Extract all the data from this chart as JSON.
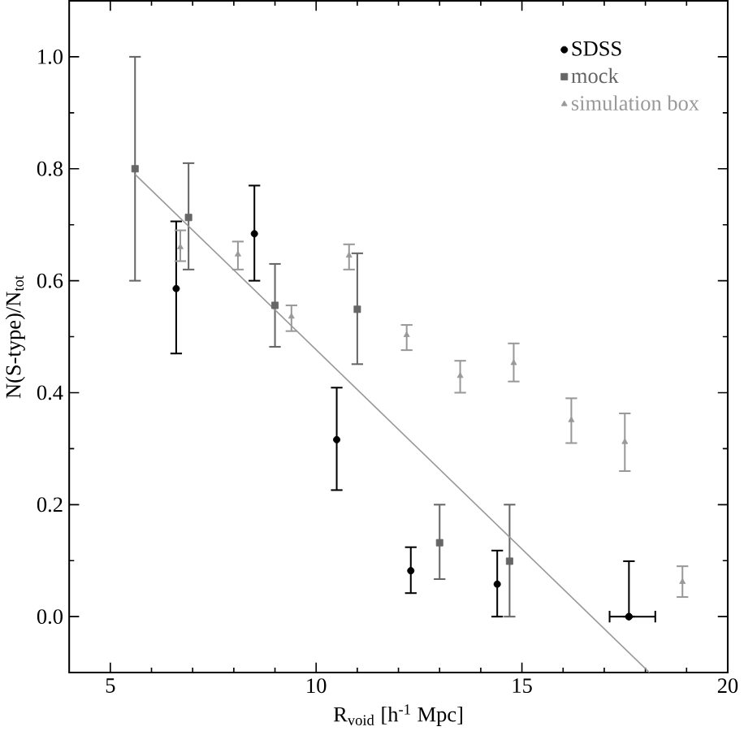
{
  "chart_data": {
    "type": "scatter",
    "xlabel": "R$_{void}$ [h$^{-1}$ Mpc]",
    "ylabel": "N(S-type)/N$_{tot}$",
    "xlim": [
      4,
      20
    ],
    "ylim": [
      -0.1,
      1.1
    ],
    "xticks": [
      5,
      10,
      15,
      20
    ],
    "yticks": [
      {
        "value": 0,
        "label": "0.0"
      },
      {
        "value": 0.2,
        "label": "0.2"
      },
      {
        "value": 0.4,
        "label": "0.4"
      },
      {
        "value": 0.6,
        "label": "0.6"
      },
      {
        "value": 0.8,
        "label": "0.8"
      },
      {
        "value": 1.0,
        "label": "1.0"
      }
    ],
    "grid": false,
    "legend": "top right",
    "series": [
      {
        "name": "SDSS",
        "color": "#000000",
        "marker": "circle",
        "x": [
          6.6,
          8.5,
          10.5,
          12.3,
          14.4,
          17.6
        ],
        "values": [
          0.586,
          0.684,
          0.316,
          0.082,
          0.058,
          0.0
        ],
        "errors": [
          [
            0.47,
            0.706
          ],
          [
            0.6,
            0.77
          ],
          [
            0.226,
            0.409
          ],
          [
            0.042,
            0.124
          ],
          [
            0.0,
            0.118
          ],
          [
            0.0,
            0.099
          ]
        ],
        "xerrors": [
          null,
          null,
          null,
          null,
          null,
          [
            17.13,
            18.24
          ]
        ]
      },
      {
        "name": "mock",
        "color": "#666666",
        "marker": "square",
        "x": [
          5.6,
          6.9,
          9.0,
          11.0,
          13.0,
          14.7
        ],
        "values": [
          0.8,
          0.713,
          0.556,
          0.549,
          0.132,
          0.099
        ],
        "errors": [
          [
            0.6,
            1.0
          ],
          [
            0.62,
            0.81
          ],
          [
            0.482,
            0.63
          ],
          [
            0.451,
            0.649
          ],
          [
            0.067,
            0.2
          ],
          [
            0.0,
            0.2
          ]
        ]
      },
      {
        "name": "simulation box",
        "color": "#999999",
        "marker": "triangle",
        "x": [
          6.7,
          8.1,
          9.4,
          10.8,
          12.2,
          13.5,
          14.8,
          16.2,
          17.5,
          18.9
        ],
        "values": [
          0.66,
          0.647,
          0.536,
          0.645,
          0.503,
          0.43,
          0.453,
          0.351,
          0.312,
          0.062
        ],
        "errors": [
          [
            0.635,
            0.69
          ],
          [
            0.62,
            0.67
          ],
          [
            0.51,
            0.556
          ],
          [
            0.62,
            0.665
          ],
          [
            0.476,
            0.521
          ],
          [
            0.4,
            0.457
          ],
          [
            0.42,
            0.488
          ],
          [
            0.31,
            0.39
          ],
          [
            0.26,
            0.363
          ],
          [
            0.035,
            0.09
          ]
        ]
      },
      {
        "type": "line",
        "color": "#999999",
        "x": [
          5.6,
          18.1
        ],
        "values": [
          0.79,
          -0.1
        ]
      }
    ]
  }
}
